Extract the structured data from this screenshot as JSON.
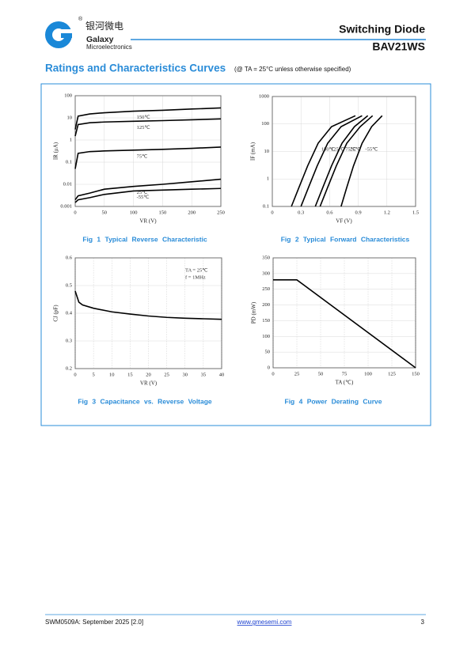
{
  "header": {
    "logo_cn": "银河微电",
    "logo_registered": "®",
    "logo_name": "Galaxy",
    "logo_sub": "Microelectronics",
    "title": "Switching Diode",
    "part": "BAV21WS"
  },
  "section": {
    "title": "Ratings and Characteristics Curves",
    "condition": "(@ TA = 25°C unless otherwise specified)"
  },
  "chart_data": [
    {
      "type": "line",
      "title": "Fig 1 Typical Reverse Characteristic",
      "x_label": "VR (V)",
      "y_label": "IR (μA)",
      "log_y": true,
      "grid": true,
      "x": [
        0,
        5,
        25,
        50,
        100,
        150,
        200,
        250
      ],
      "series": [
        {
          "name": "150℃",
          "color": "#000000",
          "values": [
            3,
            12,
            15,
            17,
            20,
            22,
            25,
            28
          ]
        },
        {
          "name": "125℃",
          "color": "#000000",
          "values": [
            1.5,
            5,
            6,
            6.5,
            7,
            7.5,
            8.2,
            9
          ]
        },
        {
          "name": "75℃",
          "color": "#000000",
          "values": [
            0.05,
            0.25,
            0.3,
            0.32,
            0.35,
            0.38,
            0.42,
            0.48
          ]
        },
        {
          "name": "25℃",
          "color": "#000000",
          "values": [
            0.002,
            0.003,
            0.004,
            0.006,
            0.008,
            0.01,
            0.013,
            0.017
          ]
        },
        {
          "name": "-55℃",
          "color": "#000000",
          "values": [
            0.0015,
            0.002,
            0.0025,
            0.0035,
            0.005,
            0.0055,
            0.006,
            0.0065
          ]
        }
      ],
      "xlim": [
        0,
        250
      ],
      "ylim": [
        0.001,
        100
      ],
      "xticks": [
        0,
        50,
        100,
        150,
        200,
        250
      ],
      "yticks": [
        100,
        10,
        1,
        0.1,
        0.01,
        0.001
      ]
    },
    {
      "type": "line",
      "title": "Fig 2 Typical Forward Characteristics",
      "x_label": "VF (V)",
      "y_label": "IF (mA)",
      "log_y": true,
      "grid": true,
      "series": [
        {
          "name": "150℃",
          "color": "#000000",
          "x": [
            0.2,
            0.28,
            0.37,
            0.48,
            0.62,
            0.87
          ],
          "values": [
            0.1,
            0.5,
            3,
            20,
            80,
            200
          ]
        },
        {
          "name": "125℃",
          "color": "#000000",
          "x": [
            0.3,
            0.38,
            0.47,
            0.58,
            0.72,
            0.94
          ],
          "values": [
            0.1,
            0.5,
            3,
            20,
            80,
            200
          ]
        },
        {
          "name": "75℃",
          "color": "#000000",
          "x": [
            0.45,
            0.53,
            0.62,
            0.73,
            0.86,
            1.0
          ],
          "values": [
            0.1,
            0.5,
            3,
            20,
            80,
            200
          ]
        },
        {
          "name": "25℃",
          "color": "#000000",
          "x": [
            0.5,
            0.58,
            0.67,
            0.78,
            0.92,
            1.05
          ],
          "values": [
            0.1,
            0.5,
            3,
            20,
            80,
            200
          ]
        },
        {
          "name": "-55℃",
          "color": "#000000",
          "x": [
            0.72,
            0.78,
            0.85,
            0.94,
            1.04,
            1.15
          ],
          "values": [
            0.1,
            0.5,
            3,
            20,
            80,
            200
          ]
        }
      ],
      "xlim": [
        0,
        1.5
      ],
      "ylim": [
        0.1,
        1000
      ],
      "xticks": [
        0,
        0.3,
        0.6,
        0.9,
        1.2,
        1.5
      ],
      "yticks": [
        1000,
        100,
        10,
        1,
        0.1
      ]
    },
    {
      "type": "line",
      "title": "Fig 3 Capacitance vs. Reverse Voltage",
      "x_label": "VR (V)",
      "y_label": "CJ (pF)",
      "log_y": false,
      "grid": true,
      "annotations": [
        "TA = 25℃",
        "f = 1MHz"
      ],
      "x": [
        0,
        1,
        2,
        5,
        10,
        15,
        20,
        25,
        30,
        35,
        40
      ],
      "series": [
        {
          "name": null,
          "color": "#000000",
          "values": [
            0.48,
            0.44,
            0.43,
            0.418,
            0.405,
            0.397,
            0.39,
            0.385,
            0.382,
            0.38,
            0.378
          ]
        }
      ],
      "xlim": [
        0,
        40
      ],
      "ylim": [
        0.2,
        0.6
      ],
      "xticks": [
        0,
        5,
        10,
        15,
        20,
        25,
        30,
        35,
        40
      ],
      "yticks": [
        0.2,
        0.3,
        0.4,
        0.5,
        0.6
      ]
    },
    {
      "type": "line",
      "title": "Fig 4 Power Derating Curve",
      "x_label": "TA (℃)",
      "y_label": "PD (mW)",
      "log_y": false,
      "grid": true,
      "x": [
        0,
        25,
        150
      ],
      "series": [
        {
          "name": null,
          "color": "#000000",
          "values": [
            280,
            280,
            0
          ]
        }
      ],
      "xlim": [
        0,
        150
      ],
      "ylim": [
        0,
        350
      ],
      "xticks": [
        0,
        25,
        50,
        75,
        100,
        125,
        150
      ],
      "yticks": [
        0,
        50,
        100,
        150,
        200,
        250,
        300,
        350
      ]
    }
  ],
  "footer": {
    "doc": "SWM0509A: September 2025 [2.0]",
    "url": "www.gmesemi.com",
    "page": "3"
  }
}
